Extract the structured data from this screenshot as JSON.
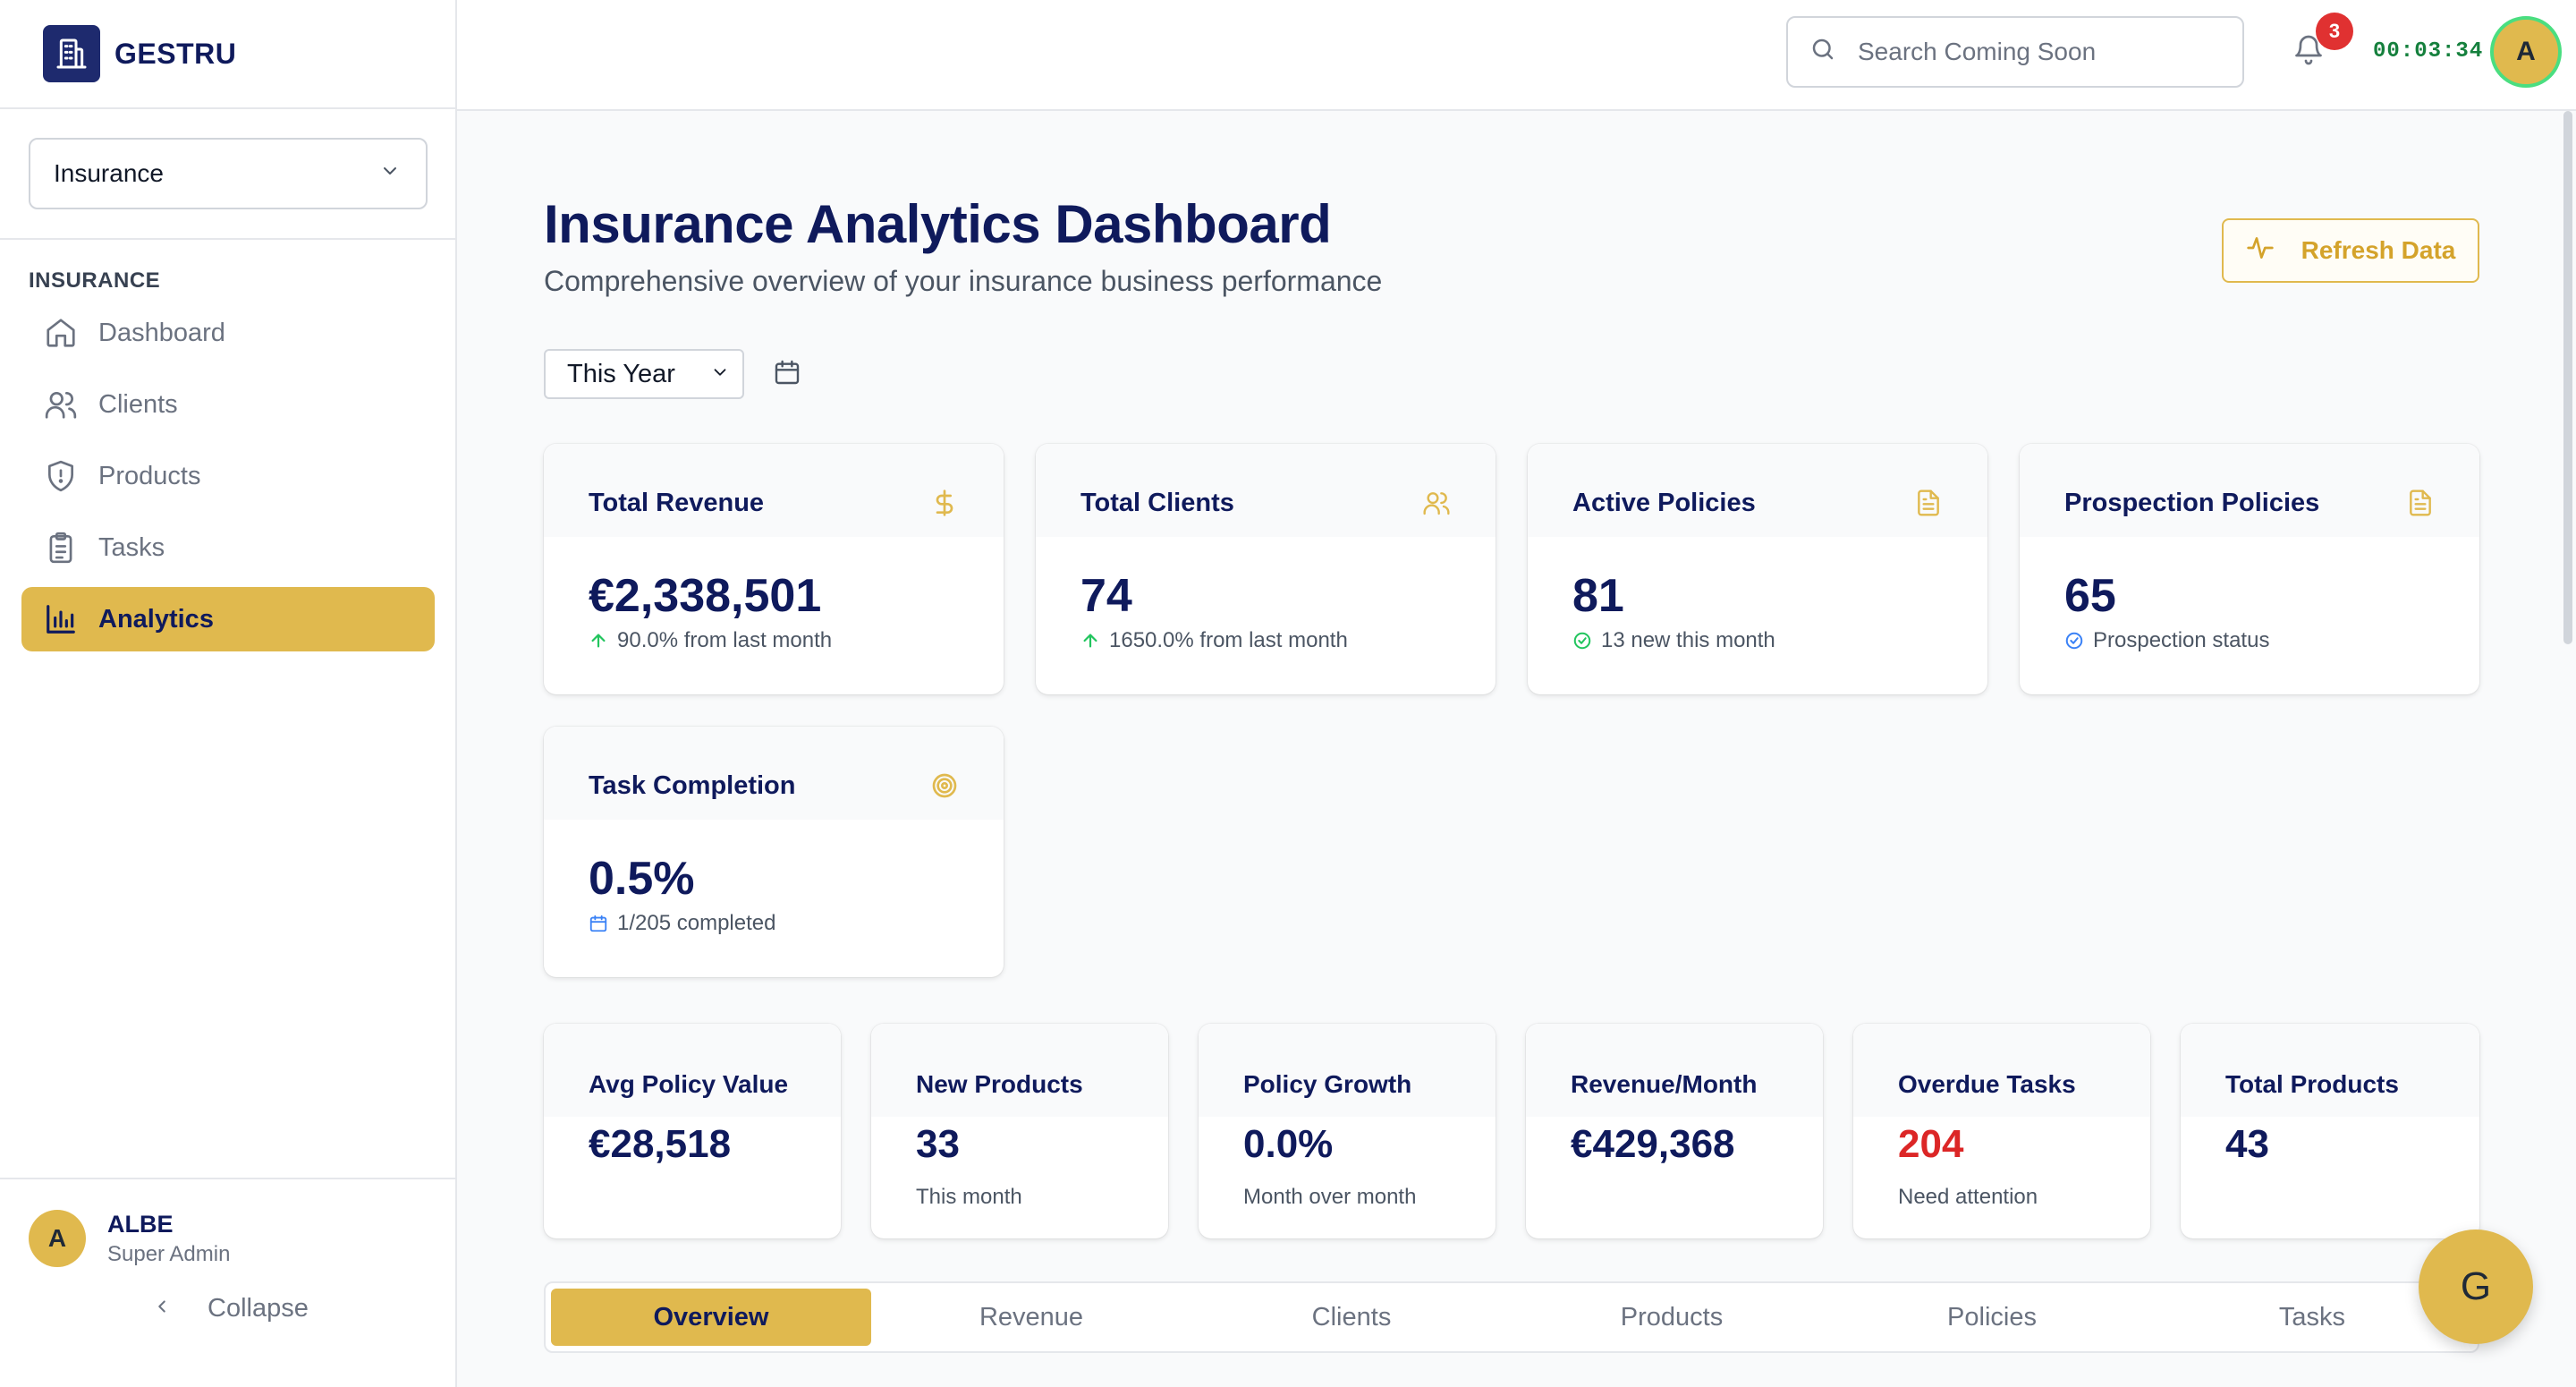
{
  "brand": {
    "name": "GESTRU",
    "icon": "building-icon"
  },
  "sidebar": {
    "org_select": "Insurance",
    "section_label": "INSURANCE",
    "items": [
      {
        "label": "Dashboard",
        "icon": "home-icon",
        "active": false
      },
      {
        "label": "Clients",
        "icon": "users-icon",
        "active": false
      },
      {
        "label": "Products",
        "icon": "shield-icon",
        "active": false
      },
      {
        "label": "Tasks",
        "icon": "clipboard-icon",
        "active": false
      },
      {
        "label": "Analytics",
        "icon": "bar-chart-icon",
        "active": true
      }
    ],
    "user": {
      "initial": "A",
      "name": "ALBE",
      "role": "Super Admin"
    },
    "collapse_label": "Collapse"
  },
  "topbar": {
    "search_placeholder": "Search Coming Soon",
    "notification_count": "3",
    "timer": "00:03:34",
    "avatar_initial": "A"
  },
  "page": {
    "title": "Insurance Analytics Dashboard",
    "subtitle": "Comprehensive overview of your insurance business performance",
    "refresh_label": "Refresh Data",
    "period": "This Year"
  },
  "kpis": [
    {
      "label": "Total Revenue",
      "value": "€2,338,501",
      "note": "90.0% from last month",
      "icon": "dollar-icon",
      "note_icon": "arrow-up-icon"
    },
    {
      "label": "Total Clients",
      "value": "74",
      "note": "1650.0% from last month",
      "icon": "users-icon",
      "note_icon": "arrow-up-icon"
    },
    {
      "label": "Active Policies",
      "value": "81",
      "note": "13 new this month",
      "icon": "document-icon",
      "note_icon": "check-circle-icon"
    },
    {
      "label": "Prospection Policies",
      "value": "65",
      "note": "Prospection status",
      "icon": "document-icon",
      "note_icon": "check-circle-icon"
    },
    {
      "label": "Task Completion",
      "value": "0.5%",
      "note": "1/205 completed",
      "icon": "target-icon",
      "note_icon": "calendar-icon"
    }
  ],
  "mini_stats": [
    {
      "label": "Avg Policy Value",
      "value": "€28,518",
      "note": ""
    },
    {
      "label": "New Products",
      "value": "33",
      "note": "This month"
    },
    {
      "label": "Policy Growth",
      "value": "0.0%",
      "note": "Month over month"
    },
    {
      "label": "Revenue/Month",
      "value": "€429,368",
      "note": ""
    },
    {
      "label": "Overdue Tasks",
      "value": "204",
      "note": "Need attention"
    },
    {
      "label": "Total Products",
      "value": "43",
      "note": ""
    }
  ],
  "tabs": [
    {
      "label": "Overview",
      "active": true
    },
    {
      "label": "Revenue",
      "active": false
    },
    {
      "label": "Clients",
      "active": false
    },
    {
      "label": "Products",
      "active": false
    },
    {
      "label": "Policies",
      "active": false
    },
    {
      "label": "Tasks",
      "active": false
    }
  ],
  "fab_label": "G",
  "colors": {
    "accent": "#e0b94e",
    "navy": "#0f1a5c",
    "success": "#22c55e",
    "danger": "#dc2626",
    "info": "#3b82f6"
  }
}
